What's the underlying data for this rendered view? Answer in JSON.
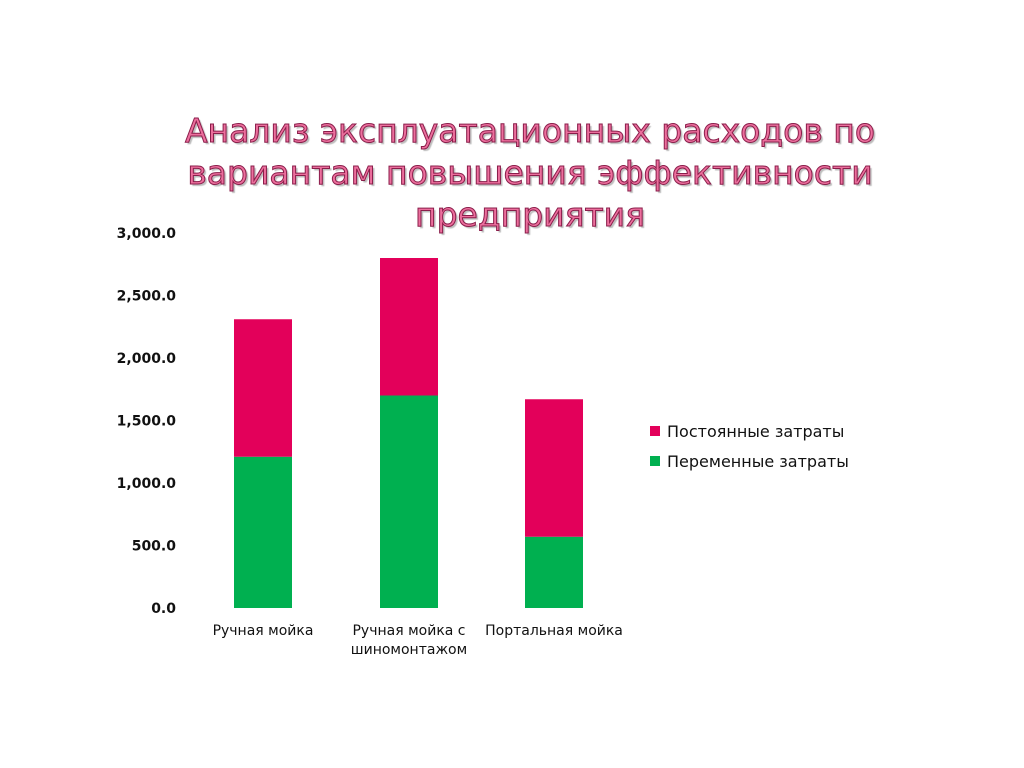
{
  "title": "Анализ эксплуатационных расходов по вариантам повышения эффективности предприятия",
  "chart_data": {
    "type": "bar",
    "stacked": true,
    "categories": [
      "Ручная мойка",
      "Ручная мойка с шиномонтажом",
      "Портальная мойка"
    ],
    "series": [
      {
        "name": "Переменные затраты",
        "color": "#00b050",
        "values": [
          1210,
          1700,
          570
        ]
      },
      {
        "name": "Постоянные затраты",
        "color": "#e3005a",
        "values": [
          1100,
          1100,
          1100
        ]
      }
    ],
    "ylim": [
      0,
      3000
    ],
    "yticks": [
      {
        "value": 0,
        "label": "0.0"
      },
      {
        "value": 500,
        "label": "500.0"
      },
      {
        "value": 1000,
        "label": "1,000.0"
      },
      {
        "value": 1500,
        "label": "1,500.0"
      },
      {
        "value": 2000,
        "label": "2,000.0"
      },
      {
        "value": 2500,
        "label": "2,500.0"
      },
      {
        "value": 3000,
        "label": "3,000.0"
      }
    ],
    "grid": false,
    "legend_position": "right",
    "legend_order": [
      "Постоянные затраты",
      "Переменные затраты"
    ]
  }
}
